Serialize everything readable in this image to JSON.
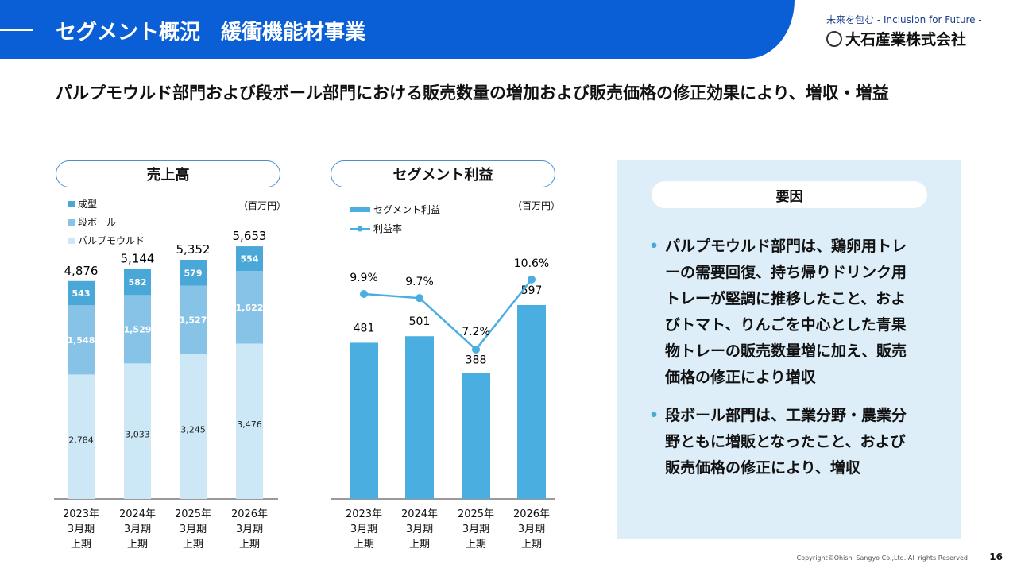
{
  "header": {
    "title": "セグメント概況　緩衝機能材事業"
  },
  "logo": {
    "tagline": "未来を包む - Inclusion for Future -",
    "company": "大石産業株式会社",
    "mark": "OSK"
  },
  "lead": "パルプモウルド部門および段ボール部門における販売数量の増加および販売価格の修正効果により、増収・増益",
  "colors": {
    "header": "#0a5fd6",
    "molding": "#4aa8d8",
    "cardboard": "#86c3e6",
    "pulp": "#cce7f5",
    "segment": "#4aaee0"
  },
  "chart_data": [
    {
      "type": "bar",
      "stacked": true,
      "title": "売上高",
      "unit": "（百万円）",
      "categories": [
        "2023年\n3月期\n上期",
        "2024年\n3月期\n上期",
        "2025年\n3月期\n上期",
        "2026年\n3月期\n上期"
      ],
      "series": [
        {
          "name": "パルプモウルド",
          "values": [
            2784,
            3033,
            3245,
            3476
          ]
        },
        {
          "name": "段ボール",
          "values": [
            1548,
            1529,
            1527,
            1622
          ]
        },
        {
          "name": "成型",
          "values": [
            543,
            582,
            579,
            554
          ]
        }
      ],
      "totals": [
        4876,
        5144,
        5352,
        5653
      ],
      "legend_order": [
        "成型",
        "段ボール",
        "パルプモウルド"
      ]
    },
    {
      "type": "bar+line",
      "title": "セグメント利益",
      "unit": "（百万円）",
      "categories": [
        "2023年\n3月期\n上期",
        "2024年\n3月期\n上期",
        "2025年\n3月期\n上期",
        "2026年\n3月期\n上期"
      ],
      "series": [
        {
          "name": "セグメント利益",
          "type": "bar",
          "values": [
            481,
            501,
            388,
            597
          ]
        },
        {
          "name": "利益率",
          "type": "line",
          "values": [
            9.9,
            9.7,
            7.2,
            10.6
          ],
          "labels": [
            "9.9%",
            "9.7%",
            "7.2%",
            "10.6%"
          ]
        }
      ]
    }
  ],
  "factors": {
    "title": "要因",
    "bullets": [
      "パルプモウルド部門は、鶏卵用トレーの需要回復、持ち帰りドリンク用トレーが堅調に推移したこと、およびトマト、りんごを中心とした青果物トレーの販売数量増に加え、販売価格の修正により増収",
      "段ボール部門は、工業分野・農業分野ともに増販となったこと、および販売価格の修正により、増収"
    ]
  },
  "footer": {
    "copyright": "Copyright©Ohishi Sangyo Co.,Ltd. All rights Reserved",
    "page": "16"
  }
}
